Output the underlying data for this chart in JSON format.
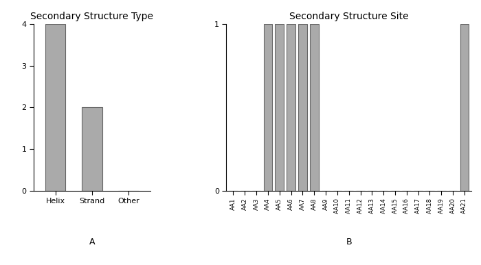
{
  "panel_a": {
    "title": "Secondary Structure Type",
    "categories": [
      "Helix",
      "Strand",
      "Other"
    ],
    "values": [
      4,
      2,
      0
    ],
    "panel_label": "A",
    "ylim": [
      0,
      4
    ],
    "yticks": [
      0,
      1,
      2,
      3,
      4
    ],
    "bar_color": "#aaaaaa",
    "bar_edgecolor": "#666666"
  },
  "panel_b": {
    "title": "Secondary Structure Site",
    "categories": [
      "AA1",
      "AA2",
      "AA3",
      "AA4",
      "AA5",
      "AA6",
      "AA7",
      "AA8",
      "AA9",
      "AA10",
      "AA11",
      "AA12",
      "AA13",
      "AA14",
      "AA15",
      "AA16",
      "AA17",
      "AA18",
      "AA19",
      "AA20",
      "AA21"
    ],
    "values": [
      0,
      0,
      0,
      1,
      1,
      1,
      1,
      1,
      0,
      0,
      0,
      0,
      0,
      0,
      0,
      0,
      0,
      0,
      0,
      0,
      1
    ],
    "panel_label": "B",
    "ylim": [
      0,
      1
    ],
    "yticks": [
      0,
      1
    ],
    "bar_color": "#aaaaaa",
    "bar_edgecolor": "#666666"
  },
  "background_color": "#ffffff",
  "title_fontsize": 10,
  "tick_fontsize": 8,
  "label_fontsize": 9
}
